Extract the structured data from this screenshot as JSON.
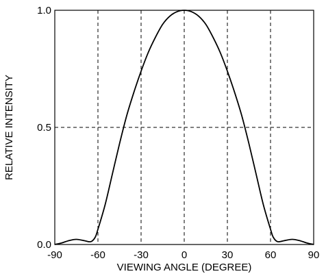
{
  "chart_data": {
    "type": "line",
    "title": "",
    "xlabel": "VIEWING ANGLE (DEGREE)",
    "ylabel": "RELATIVE  INTENSITY",
    "xlim": [
      -90,
      90
    ],
    "ylim": [
      0,
      1.0
    ],
    "xticks": [
      -90,
      -60,
      -30,
      0,
      30,
      60,
      90
    ],
    "xtick_labels": [
      "-90",
      "-60",
      "-30",
      "0",
      "30",
      "60",
      "90"
    ],
    "yticks": [
      0,
      0.5,
      1.0
    ],
    "ytick_labels": [
      "0.0",
      "0.5",
      "1.0"
    ],
    "grid": true,
    "legend": "none",
    "series": [
      {
        "x": [
          -90,
          -85,
          -80,
          -75,
          -70,
          -65,
          -62,
          -60,
          -55,
          -50,
          -45,
          -40,
          -35,
          -30,
          -25,
          -20,
          -15,
          -10,
          -5,
          0,
          5,
          10,
          15,
          20,
          25,
          30,
          35,
          40,
          45,
          50,
          55,
          60,
          62,
          65,
          70,
          75,
          80,
          85,
          90
        ],
        "y": [
          0.0,
          0.007,
          0.017,
          0.022,
          0.017,
          0.012,
          0.03,
          0.065,
          0.17,
          0.3,
          0.43,
          0.55,
          0.65,
          0.74,
          0.82,
          0.885,
          0.94,
          0.975,
          0.994,
          1.0,
          0.994,
          0.975,
          0.94,
          0.885,
          0.82,
          0.74,
          0.65,
          0.55,
          0.43,
          0.3,
          0.17,
          0.065,
          0.03,
          0.012,
          0.017,
          0.022,
          0.017,
          0.007,
          0.0
        ]
      }
    ]
  }
}
